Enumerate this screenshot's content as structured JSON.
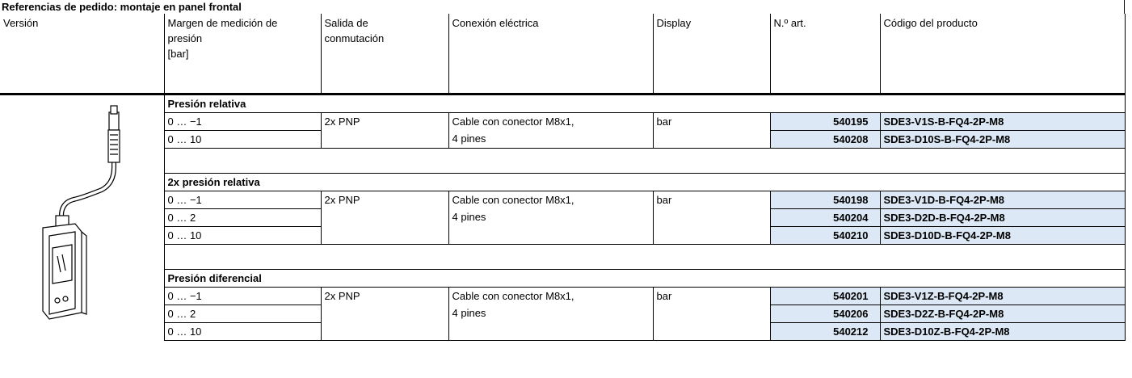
{
  "title": "Referencias de pedido: montaje en panel frontal",
  "table": {
    "headers": [
      [
        "Versión"
      ],
      [
        "Margen de medición de",
        "presión",
        "[bar]"
      ],
      [
        "Salida de",
        "conmutación"
      ],
      [
        "Conexión eléctrica"
      ],
      [
        "Display"
      ],
      [
        "N.º art."
      ],
      [
        "Código del producto"
      ]
    ],
    "groups": [
      {
        "heading": "Presión relativa",
        "output": "2x PNP",
        "connection": [
          "Cable con conector M8x1,",
          "4 pines"
        ],
        "display": "bar",
        "rows": [
          {
            "range": "0 … −1",
            "part_no": 540195,
            "code": "SDE3-V1S-B-FQ4-2P-M8"
          },
          {
            "range": "0 … 10",
            "part_no": 540208,
            "code": "SDE3-D10S-B-FQ4-2P-M8"
          }
        ]
      },
      {
        "heading": "2x presión relativa",
        "output": "2x PNP",
        "connection": [
          "Cable con conector M8x1,",
          "4 pines"
        ],
        "display": "bar",
        "rows": [
          {
            "range": "0 … −1",
            "part_no": 540198,
            "code": "SDE3-V1D-B-FQ4-2P-M8"
          },
          {
            "range": "0 … 2",
            "part_no": 540204,
            "code": "SDE3-D2D-B-FQ4-2P-M8"
          },
          {
            "range": "0 … 10",
            "part_no": 540210,
            "code": "SDE3-D10D-B-FQ4-2P-M8"
          }
        ]
      },
      {
        "heading": "Presión diferencial",
        "output": "2x PNP",
        "connection": [
          "Cable con conector M8x1,",
          "4 pines"
        ],
        "display": "bar",
        "rows": [
          {
            "range": "0 … −1",
            "part_no": 540201,
            "code": "SDE3-V1Z-B-FQ4-2P-M8"
          },
          {
            "range": "0 … 2",
            "part_no": 540206,
            "code": "SDE3-D2Z-B-FQ4-2P-M8"
          },
          {
            "range": "0 … 10",
            "part_no": 540212,
            "code": "SDE3-D10Z-B-FQ4-2P-M8"
          }
        ]
      }
    ]
  }
}
